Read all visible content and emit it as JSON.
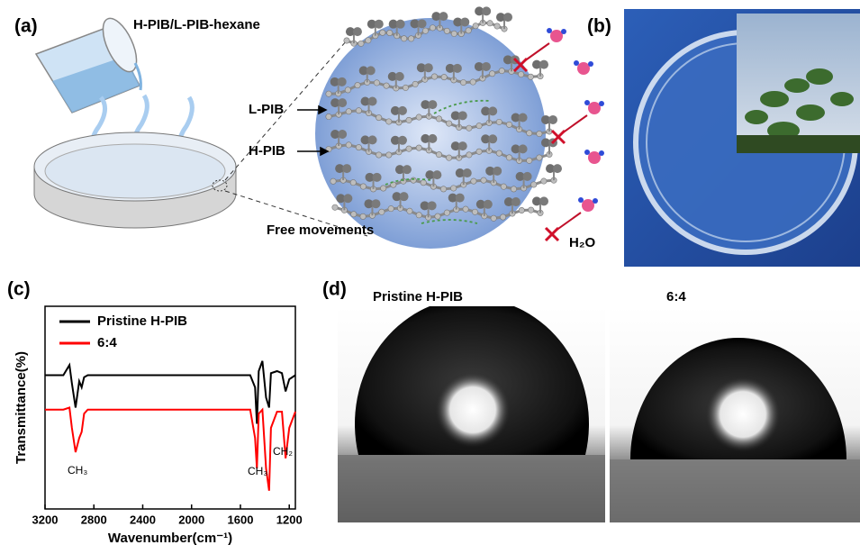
{
  "panels": {
    "a": {
      "label": "(a)",
      "title": "H-PIB/L-PIB-hexane",
      "labels": [
        "L-PIB",
        "H-PIB",
        "Free movements",
        "H₂O"
      ]
    },
    "b": {
      "label": "(b)"
    },
    "c": {
      "label": "(c)"
    },
    "d": {
      "label": "(d)",
      "captions": [
        "Pristine H-PIB",
        "6:4"
      ]
    }
  },
  "chart_data": {
    "type": "line",
    "x_label": "Wavenumber(cm⁻¹)",
    "y_label": "Transmittance(%)",
    "xlim": [
      3200,
      1150
    ],
    "xticks": [
      3200,
      2800,
      2400,
      2000,
      1600,
      1200
    ],
    "ylim": [
      0,
      100
    ],
    "x": [
      3200,
      3050,
      3000,
      2980,
      2950,
      2920,
      2900,
      2880,
      2850,
      1600,
      1520,
      1480,
      1465,
      1450,
      1420,
      1390,
      1365,
      1350,
      1300,
      1260,
      1230,
      1200,
      1150
    ],
    "series": [
      {
        "name": "Pristine H-PIB",
        "color": "#000000",
        "values": [
          66,
          66,
          71,
          62,
          50,
          63,
          60,
          65,
          66,
          66,
          66,
          60,
          42,
          68,
          73,
          55,
          50,
          67,
          68,
          67,
          58,
          64,
          66
        ]
      },
      {
        "name": "6:4",
        "color": "#ff0000",
        "values": [
          49,
          49,
          50,
          40,
          28,
          35,
          38,
          47,
          49,
          49,
          49,
          35,
          20,
          47,
          49,
          20,
          9,
          40,
          48,
          48,
          25,
          40,
          48
        ]
      }
    ],
    "annotations": [
      "CH₃",
      "CH₃",
      "CH₂"
    ]
  }
}
